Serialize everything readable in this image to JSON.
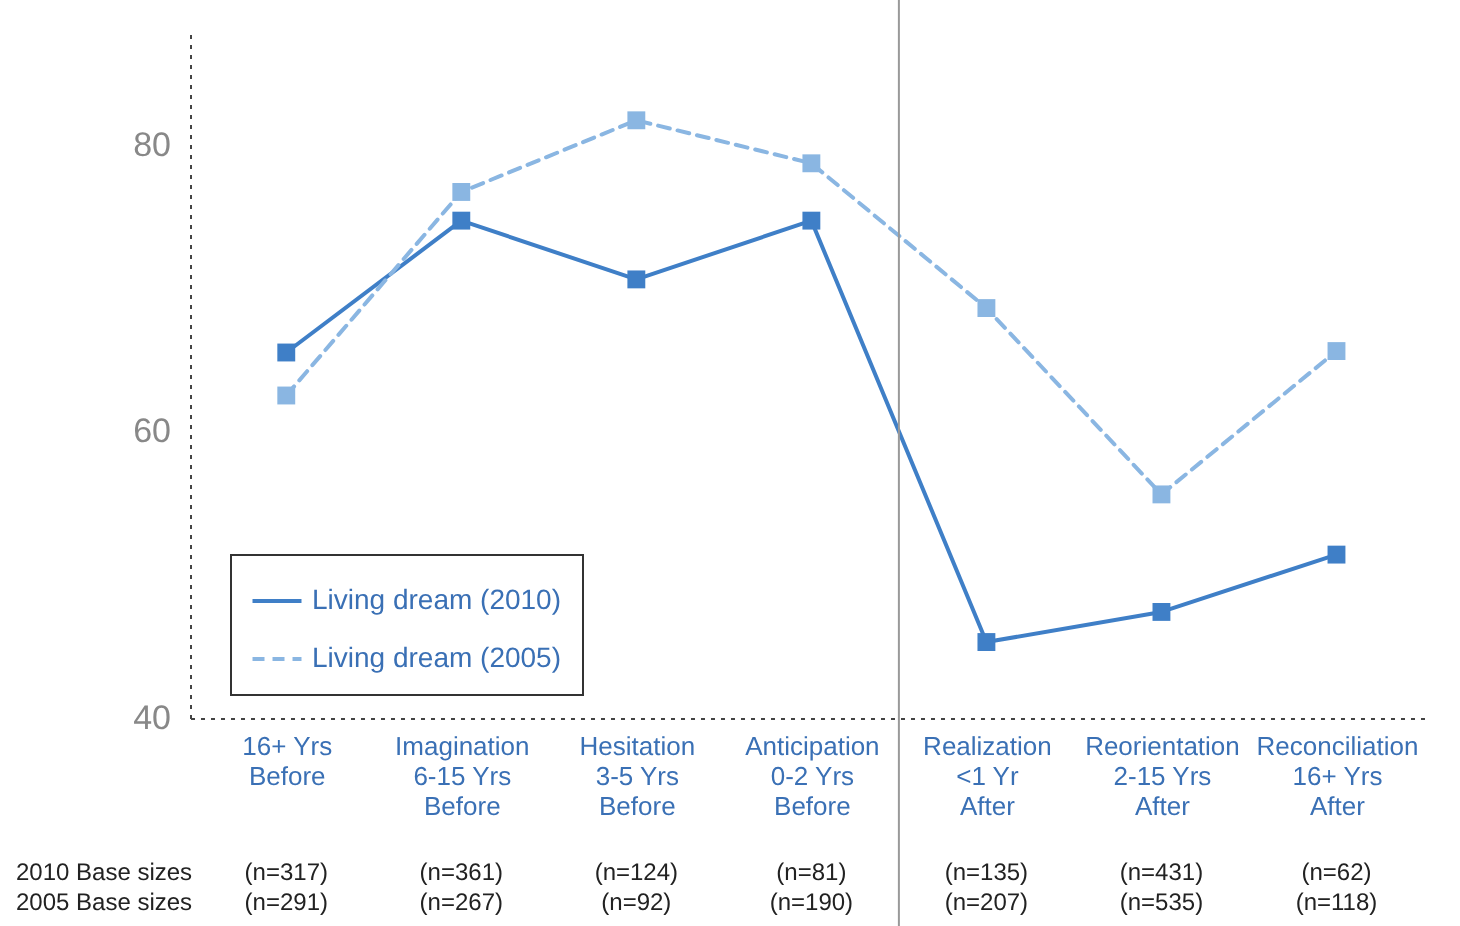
{
  "chart_data": {
    "type": "line",
    "categories": [
      "16+ Yrs\nBefore",
      "Imagination\n6-15 Yrs\nBefore",
      "Hesitation\n3-5 Yrs\nBefore",
      "Anticipation\n0-2 Yrs\nBefore",
      "Realization\n<1 Yr\nAfter",
      "Reorientation\n2-15 Yrs\nAfter",
      "Reconciliation\n16+ Yrs\nAfter"
    ],
    "series": [
      {
        "name": "Living dream (2010)",
        "color": "#3f7fc7",
        "line_style": "solid",
        "values": [
          65.5,
          74.7,
          70.6,
          74.7,
          45.3,
          47.4,
          51.4
        ]
      },
      {
        "name": "Living dream (2005)",
        "color": "#8ab6e2",
        "line_style": "dashed",
        "values": [
          62.5,
          76.7,
          81.7,
          78.7,
          68.6,
          55.6,
          65.6
        ]
      }
    ],
    "ylim": [
      40,
      88
    ],
    "yticks": [
      40,
      60,
      80
    ],
    "legend": "bottom left",
    "marker": "square",
    "annotations": [
      "2010 Base sizes",
      "(n=317)",
      "(n=361)",
      "(n=124)",
      "(n=81)",
      "(n=135)",
      "(n=431)",
      "(n=62)",
      "2005 Base sizes",
      "(n=291)",
      "(n=267)",
      "(n=92)",
      "(n=190)",
      "(n=207)",
      "(n=535)",
      "(n=118)"
    ]
  }
}
